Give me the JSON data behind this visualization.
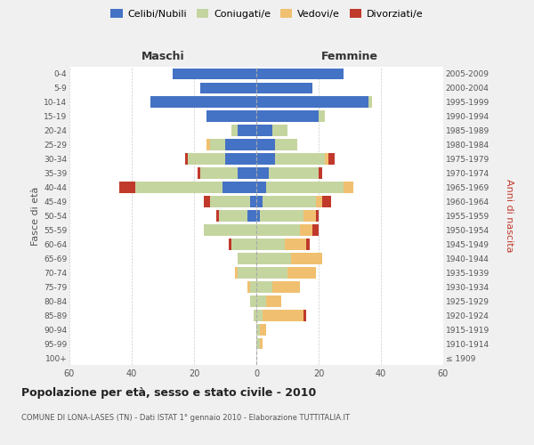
{
  "age_groups": [
    "100+",
    "95-99",
    "90-94",
    "85-89",
    "80-84",
    "75-79",
    "70-74",
    "65-69",
    "60-64",
    "55-59",
    "50-54",
    "45-49",
    "40-44",
    "35-39",
    "30-34",
    "25-29",
    "20-24",
    "15-19",
    "10-14",
    "5-9",
    "0-4"
  ],
  "birth_years": [
    "≤ 1909",
    "1910-1914",
    "1915-1919",
    "1920-1924",
    "1925-1929",
    "1930-1934",
    "1935-1939",
    "1940-1944",
    "1945-1949",
    "1950-1954",
    "1955-1959",
    "1960-1964",
    "1965-1969",
    "1970-1974",
    "1975-1979",
    "1980-1984",
    "1985-1989",
    "1990-1994",
    "1995-1999",
    "2000-2004",
    "2005-2009"
  ],
  "maschi": {
    "celibi": [
      0,
      0,
      0,
      0,
      0,
      0,
      0,
      0,
      0,
      0,
      3,
      2,
      11,
      6,
      10,
      10,
      6,
      16,
      34,
      18,
      27
    ],
    "coniugati": [
      0,
      0,
      0,
      1,
      2,
      2,
      6,
      6,
      8,
      17,
      9,
      13,
      28,
      12,
      12,
      5,
      2,
      0,
      0,
      0,
      0
    ],
    "vedovi": [
      0,
      0,
      0,
      0,
      0,
      1,
      1,
      0,
      0,
      0,
      0,
      0,
      0,
      0,
      0,
      1,
      0,
      0,
      0,
      0,
      0
    ],
    "divorziati": [
      0,
      0,
      0,
      0,
      0,
      0,
      0,
      0,
      1,
      0,
      1,
      2,
      5,
      1,
      1,
      0,
      0,
      0,
      0,
      0,
      0
    ]
  },
  "femmine": {
    "nubili": [
      0,
      0,
      0,
      0,
      0,
      0,
      0,
      0,
      0,
      0,
      1,
      2,
      3,
      4,
      6,
      6,
      5,
      20,
      36,
      18,
      28
    ],
    "coniugate": [
      0,
      1,
      1,
      2,
      3,
      5,
      10,
      11,
      9,
      14,
      14,
      17,
      25,
      16,
      16,
      7,
      5,
      2,
      1,
      0,
      0
    ],
    "vedove": [
      0,
      1,
      2,
      13,
      5,
      9,
      9,
      10,
      7,
      4,
      4,
      2,
      3,
      0,
      1,
      0,
      0,
      0,
      0,
      0,
      0
    ],
    "divorziate": [
      0,
      0,
      0,
      1,
      0,
      0,
      0,
      0,
      1,
      2,
      1,
      3,
      0,
      1,
      2,
      0,
      0,
      0,
      0,
      0,
      0
    ]
  },
  "colors": {
    "celibi_nubili": "#4472c4",
    "coniugati_e": "#c5d5a0",
    "vedovi_e": "#f0c070",
    "divorziati_e": "#c0392b"
  },
  "title": "Popolazione per età, sesso e stato civile - 2010",
  "subtitle": "COMUNE DI LONA-LASES (TN) - Dati ISTAT 1° gennaio 2010 - Elaborazione TUTTITALIA.IT",
  "xlabel_left": "Maschi",
  "xlabel_right": "Femmine",
  "ylabel_left": "Fasce di età",
  "ylabel_right": "Anni di nascita",
  "xlim": 60,
  "bg_color": "#f0f0f0",
  "plot_bg_color": "#ffffff",
  "grid_color": "#cccccc"
}
